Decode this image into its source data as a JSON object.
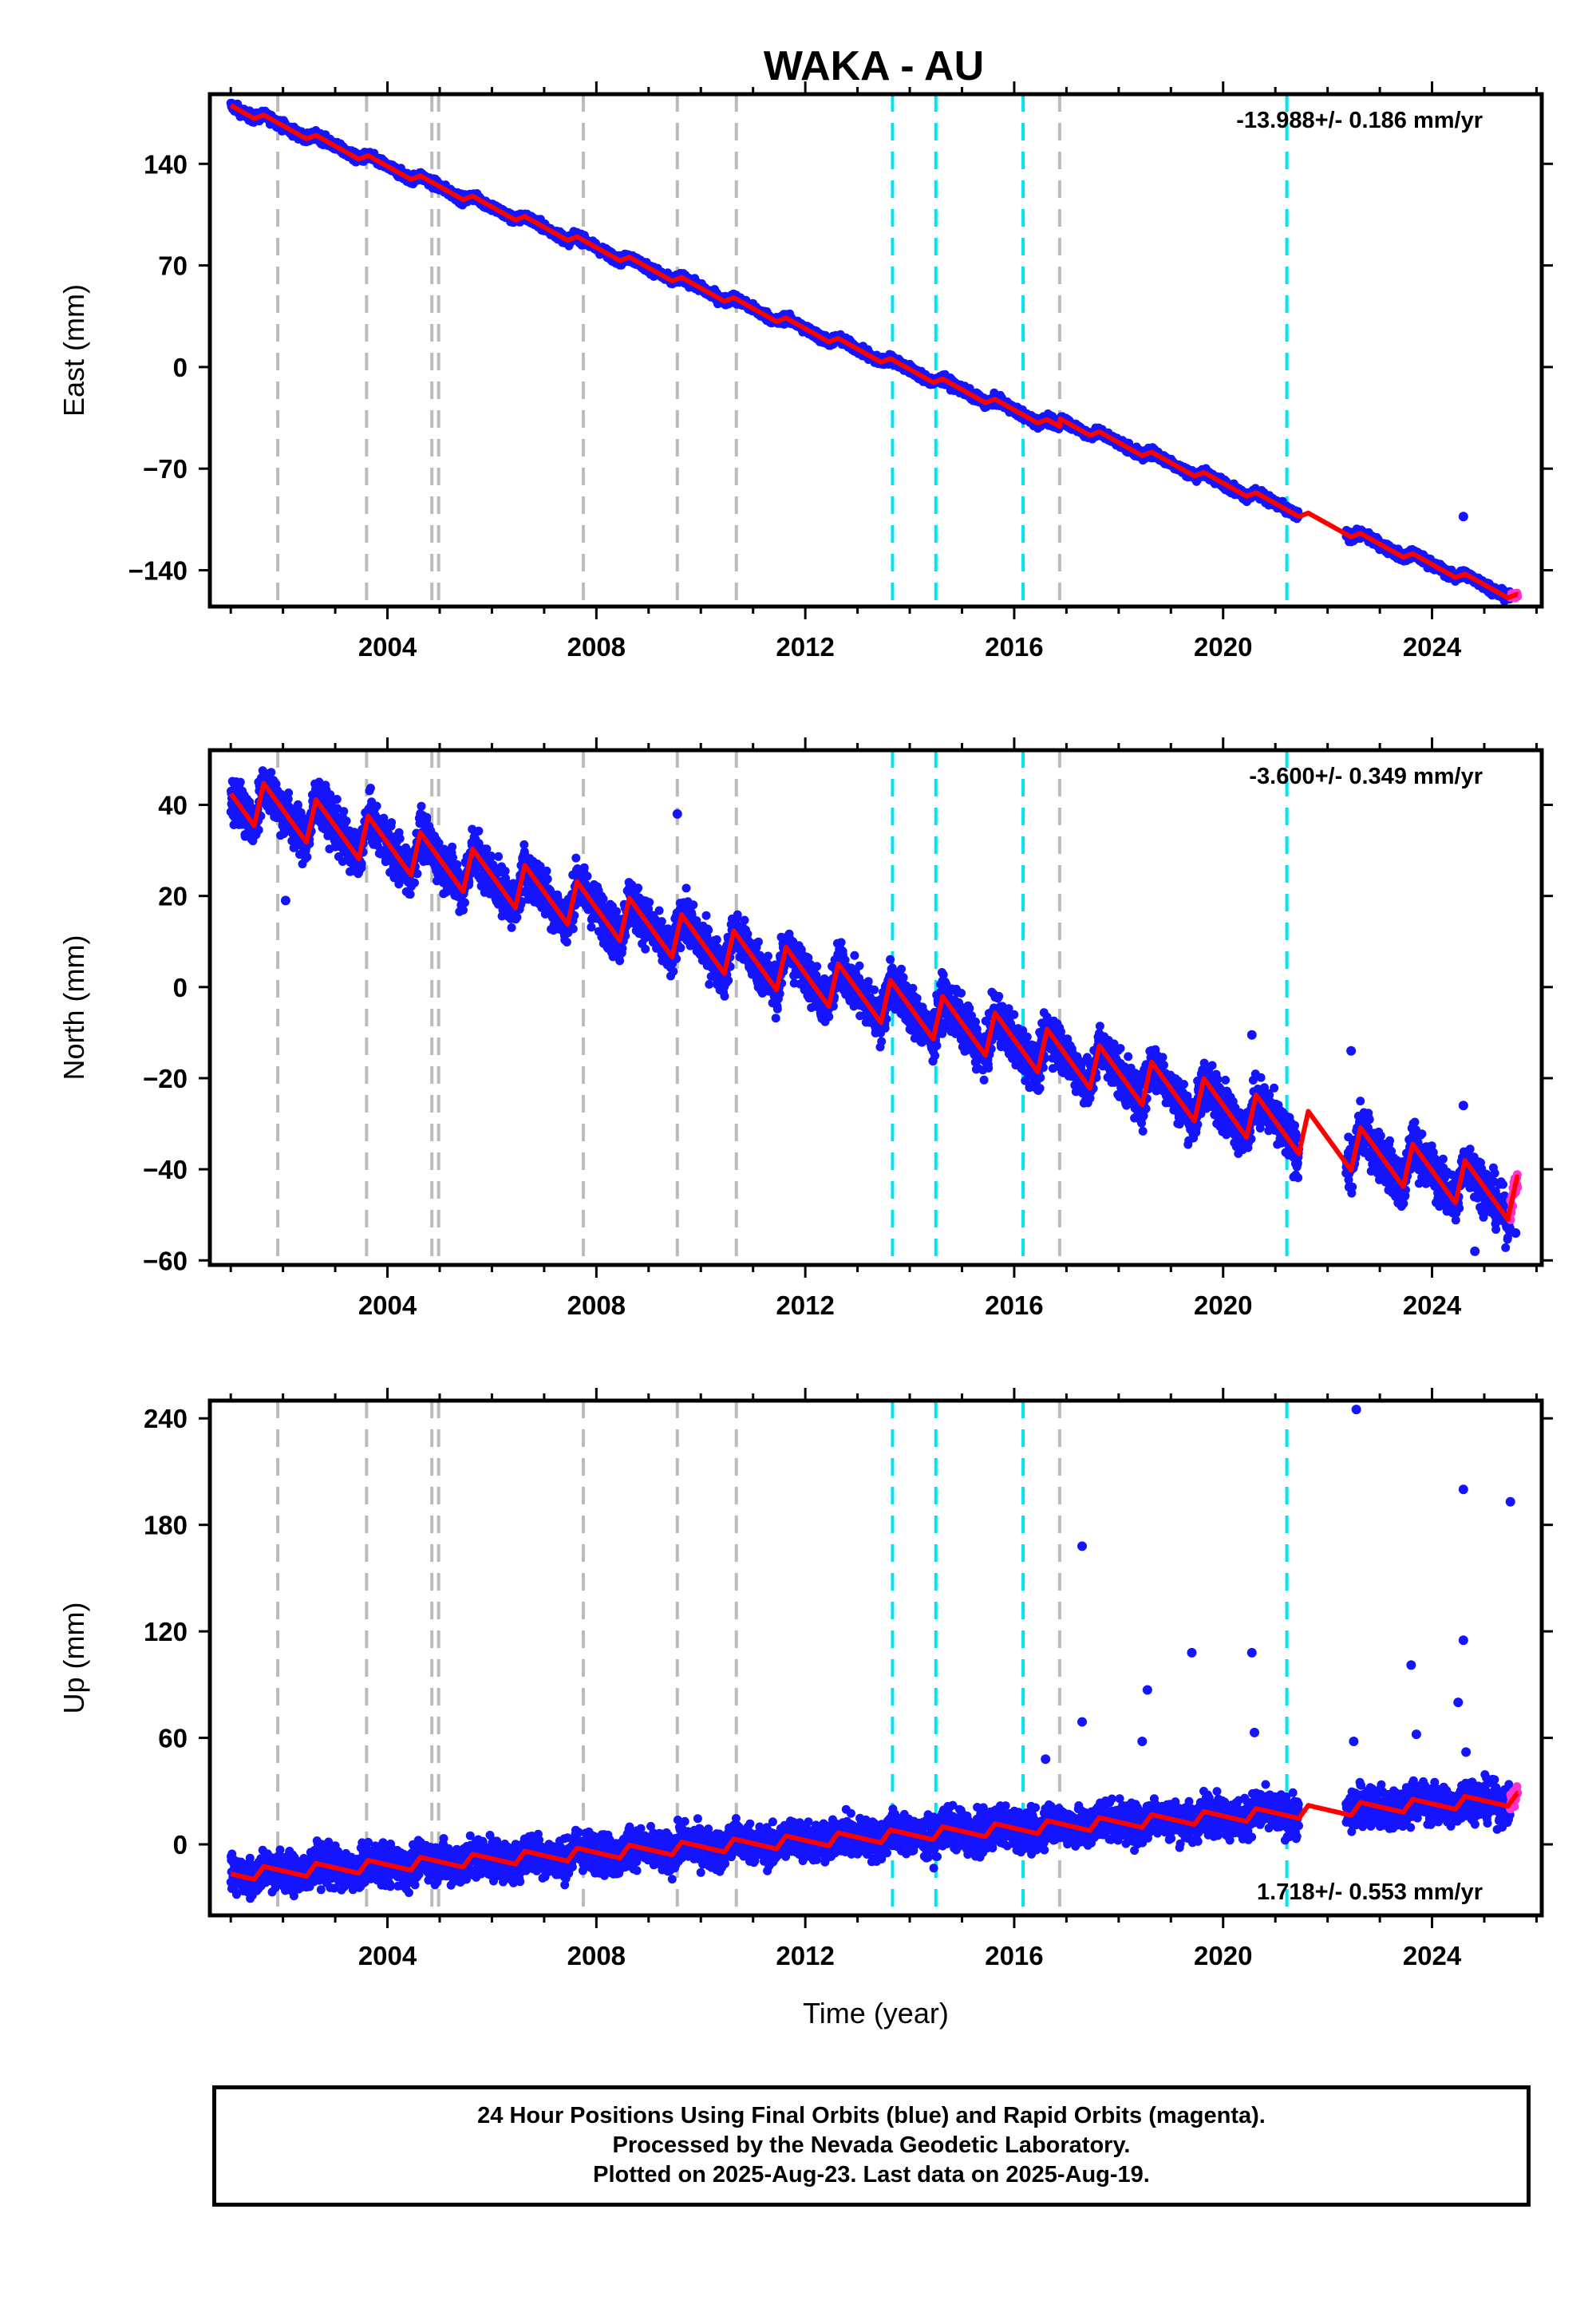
{
  "chart_data": {
    "type": "scatter",
    "title": "WAKA - AU",
    "xlabel": "Time (year)",
    "x_range": [
      2000.6,
      2026.1
    ],
    "x_ticks": [
      2004,
      2008,
      2012,
      2016,
      2020,
      2024
    ],
    "legend": "none",
    "colors": {
      "final_orbits": "#1414ff",
      "rapid_orbits": "#ff33cc",
      "model": "#ff0000",
      "event_gray": "#bbbbbb",
      "event_cyan": "#00e5ee"
    },
    "event_lines": {
      "gray": [
        2001.9,
        2003.6,
        2004.85,
        2004.98,
        2007.75,
        2009.55,
        2010.68,
        2016.87
      ],
      "cyan": [
        2013.67,
        2014.5,
        2016.17,
        2021.22
      ]
    },
    "data_gap": [
      2021.45,
      2022.35
    ],
    "panels": [
      {
        "ylabel": "East (mm)",
        "ylim": [
          -165,
          188
        ],
        "yticks": [
          140,
          70,
          0,
          -70,
          -140
        ],
        "rate_text": "-13.988+/- 0.186 mm/yr",
        "rate_position": "top-right",
        "rate_mm_yr": -13.988,
        "start": 180,
        "annual": 2.5,
        "noise": 1.6,
        "offsets": [
          {
            "x": 2016.87,
            "dy": 5.5
          }
        ],
        "outliers": [
          [
            2024.6,
            -103
          ]
        ]
      },
      {
        "ylabel": "North (mm)",
        "ylim": [
          -61,
          52
        ],
        "yticks": [
          40,
          20,
          0,
          -20,
          -40,
          -60
        ],
        "rate_text": "-3.600+/- 0.349 mm/yr",
        "rate_position": "top-right",
        "rate_mm_yr": -3.6,
        "start": 42,
        "annual": 5.0,
        "noise": 2.6,
        "offsets": [],
        "outliers": [
          [
            2002.05,
            19
          ],
          [
            2009.55,
            38
          ],
          [
            2020.55,
            -10.5
          ],
          [
            2022.45,
            -14
          ],
          [
            2024.6,
            -26
          ],
          [
            2024.82,
            -58
          ],
          [
            2025.6,
            -54
          ]
        ]
      },
      {
        "ylabel": "Up (mm)",
        "ylim": [
          -40,
          250
        ],
        "yticks": [
          240,
          180,
          120,
          60,
          0
        ],
        "rate_text": "1.718+/- 0.553 mm/yr",
        "rate_position": "bottom-right",
        "rate_mm_yr": 1.718,
        "start": -17,
        "annual": 3.5,
        "noise": 5.5,
        "offsets": [],
        "outliers": [
          [
            2017.3,
            168
          ],
          [
            2017.3,
            69
          ],
          [
            2018.55,
            87
          ],
          [
            2019.4,
            108
          ],
          [
            2020.55,
            108
          ],
          [
            2020.6,
            63
          ],
          [
            2022.55,
            245
          ],
          [
            2023.6,
            101
          ],
          [
            2023.7,
            62
          ],
          [
            2024.6,
            200
          ],
          [
            2024.6,
            115
          ],
          [
            2024.5,
            80
          ],
          [
            2025.5,
            193
          ],
          [
            2016.6,
            48
          ],
          [
            2018.45,
            58
          ],
          [
            2022.5,
            58
          ],
          [
            2024.65,
            52
          ]
        ]
      }
    ]
  },
  "footer": {
    "line1": "24 Hour Positions Using Final Orbits (blue) and Rapid Orbits (magenta).",
    "line2": "Processed by the Nevada Geodetic Laboratory.",
    "line3": "Plotted on 2025-Aug-23. Last data on 2025-Aug-19."
  }
}
